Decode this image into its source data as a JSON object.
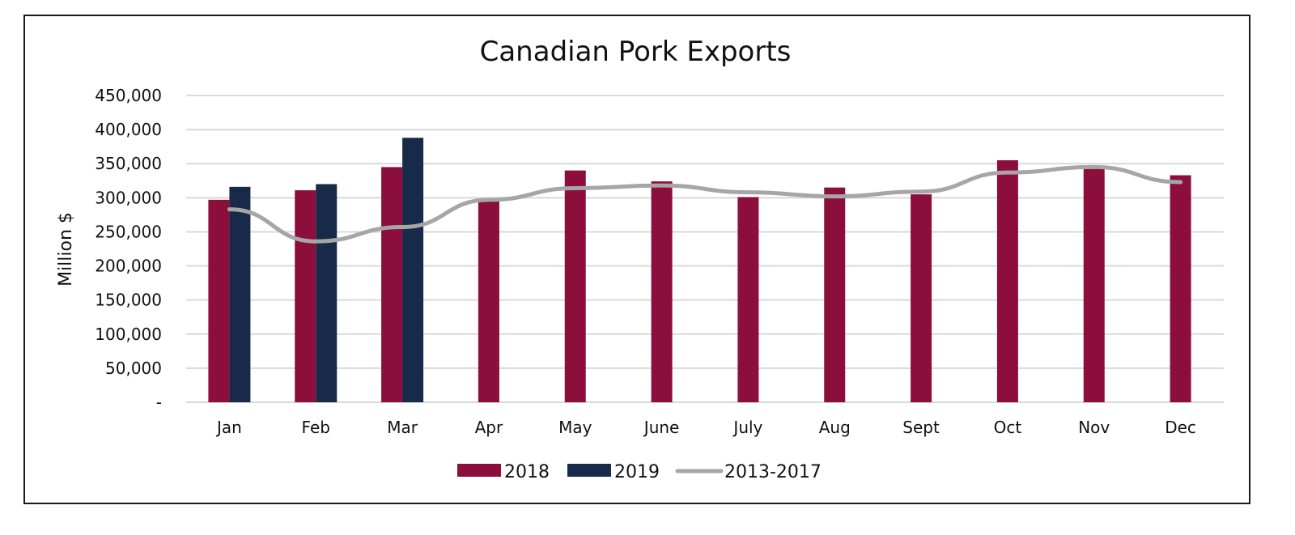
{
  "chart_data": {
    "type": "bar",
    "title": "Canadian Pork Exports",
    "xlabel": "",
    "ylabel": "Million $",
    "categories": [
      "Jan",
      "Feb",
      "Mar",
      "Apr",
      "May",
      "June",
      "July",
      "Aug",
      "Sept",
      "Oct",
      "Nov",
      "Dec"
    ],
    "ylim": [
      0,
      450000
    ],
    "yticks": [
      0,
      50000,
      100000,
      150000,
      200000,
      250000,
      300000,
      350000,
      400000,
      450000
    ],
    "ytick_labels": [
      "-",
      "50,000",
      "100,000",
      "150,000",
      "200,000",
      "250,000",
      "300,000",
      "350,000",
      "400,000",
      "450,000"
    ],
    "grid": true,
    "legend_position": "bottom",
    "series": [
      {
        "name": "2018",
        "kind": "bar",
        "color": "#8C0E3A",
        "values": [
          297000,
          311000,
          345000,
          297000,
          340000,
          324000,
          301000,
          315000,
          305000,
          355000,
          345000,
          333000
        ]
      },
      {
        "name": "2019",
        "kind": "bar",
        "color": "#172A4A",
        "values": [
          316000,
          320000,
          388000,
          null,
          null,
          null,
          null,
          null,
          null,
          null,
          null,
          null
        ]
      },
      {
        "name": "2013-2017",
        "kind": "line",
        "color": "#A6A6A6",
        "values": [
          283000,
          236000,
          257000,
          297000,
          314000,
          318000,
          308000,
          302000,
          309000,
          337000,
          345000,
          323000
        ]
      }
    ]
  }
}
